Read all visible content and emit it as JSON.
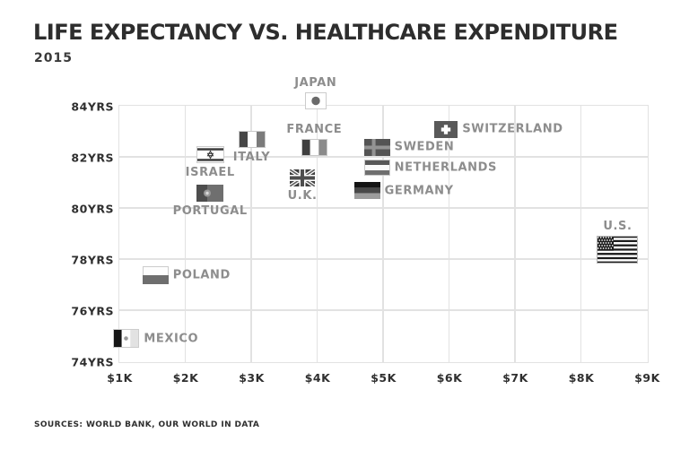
{
  "title": "LIFE EXPECTANCY VS. HEALTHCARE EXPENDITURE",
  "subtitle": "2015",
  "source": "SOURCES: WORLD BANK, OUR WORLD IN DATA",
  "colors": {
    "title_text": "#2d2d2d",
    "axis_text": "#2f2f2f",
    "point_label_text": "#8d8d8d",
    "gridline": "#e2e2e2",
    "background": "#ffffff"
  },
  "chart_data": {
    "type": "scatter",
    "title": "LIFE EXPECTANCY VS. HEALTHCARE EXPENDITURE",
    "subtitle": "2015",
    "x_unit": "USD (thousands), healthcare expenditure per capita",
    "y_unit": "years, life expectancy",
    "xlim": [
      1,
      9
    ],
    "ylim": [
      74,
      84
    ],
    "grid": true,
    "x_ticks": [
      {
        "v": 1,
        "label": "$1K"
      },
      {
        "v": 2,
        "label": "$2K"
      },
      {
        "v": 3,
        "label": "$3K"
      },
      {
        "v": 4,
        "label": "$4K"
      },
      {
        "v": 5,
        "label": "$5K"
      },
      {
        "v": 6,
        "label": "$6K"
      },
      {
        "v": 7,
        "label": "$7K"
      },
      {
        "v": 8,
        "label": "$8K"
      },
      {
        "v": 9,
        "label": "$9K"
      }
    ],
    "y_ticks": [
      {
        "v": 84,
        "label": "84YRS"
      },
      {
        "v": 82,
        "label": "82YRS"
      },
      {
        "v": 80,
        "label": "80YRS"
      },
      {
        "v": 78,
        "label": "78YRS"
      },
      {
        "v": 76,
        "label": "76YRS"
      },
      {
        "v": 74,
        "label": "74YRS"
      }
    ],
    "points": [
      {
        "name": "japan",
        "label": "JAPAN",
        "x": 3.97,
        "y": 84.2,
        "flag": "japan-flag",
        "label_pos": "above"
      },
      {
        "name": "switzerland",
        "label": "SWITZERLAND",
        "x": 5.95,
        "y": 83.1,
        "flag": "switzerland-flag",
        "label_pos": "right"
      },
      {
        "name": "italy",
        "label": "ITALY",
        "x": 3.0,
        "y": 82.7,
        "flag": "italy-flag",
        "label_pos": "below"
      },
      {
        "name": "france",
        "label": "FRANCE",
        "x": 3.95,
        "y": 82.4,
        "flag": "france-flag",
        "label_pos": "above"
      },
      {
        "name": "sweden",
        "label": "SWEDEN",
        "x": 4.9,
        "y": 82.4,
        "flag": "sweden-flag",
        "label_pos": "right"
      },
      {
        "name": "israel",
        "label": "ISRAEL",
        "x": 2.37,
        "y": 82.1,
        "flag": "israel-flag",
        "label_pos": "below"
      },
      {
        "name": "netherlands",
        "label": "NETHERLANDS",
        "x": 4.9,
        "y": 81.6,
        "flag": "netherlands-flag",
        "label_pos": "right"
      },
      {
        "name": "uk",
        "label": "U.K.",
        "x": 3.77,
        "y": 81.2,
        "flag": "uk-flag",
        "label_pos": "below"
      },
      {
        "name": "germany",
        "label": "GERMANY",
        "x": 4.75,
        "y": 80.7,
        "flag": "germany-flag",
        "label_pos": "right"
      },
      {
        "name": "portugal",
        "label": "PORTUGAL",
        "x": 2.37,
        "y": 80.6,
        "flag": "portugal-flag",
        "label_pos": "below"
      },
      {
        "name": "us",
        "label": "U.S.",
        "x": 8.55,
        "y": 78.4,
        "flag": "us-flag",
        "label_pos": "above"
      },
      {
        "name": "poland",
        "label": "POLAND",
        "x": 1.54,
        "y": 77.4,
        "flag": "poland-flag",
        "label_pos": "right"
      },
      {
        "name": "mexico",
        "label": "MEXICO",
        "x": 1.1,
        "y": 74.9,
        "flag": "mexico-flag",
        "label_pos": "right"
      }
    ]
  }
}
